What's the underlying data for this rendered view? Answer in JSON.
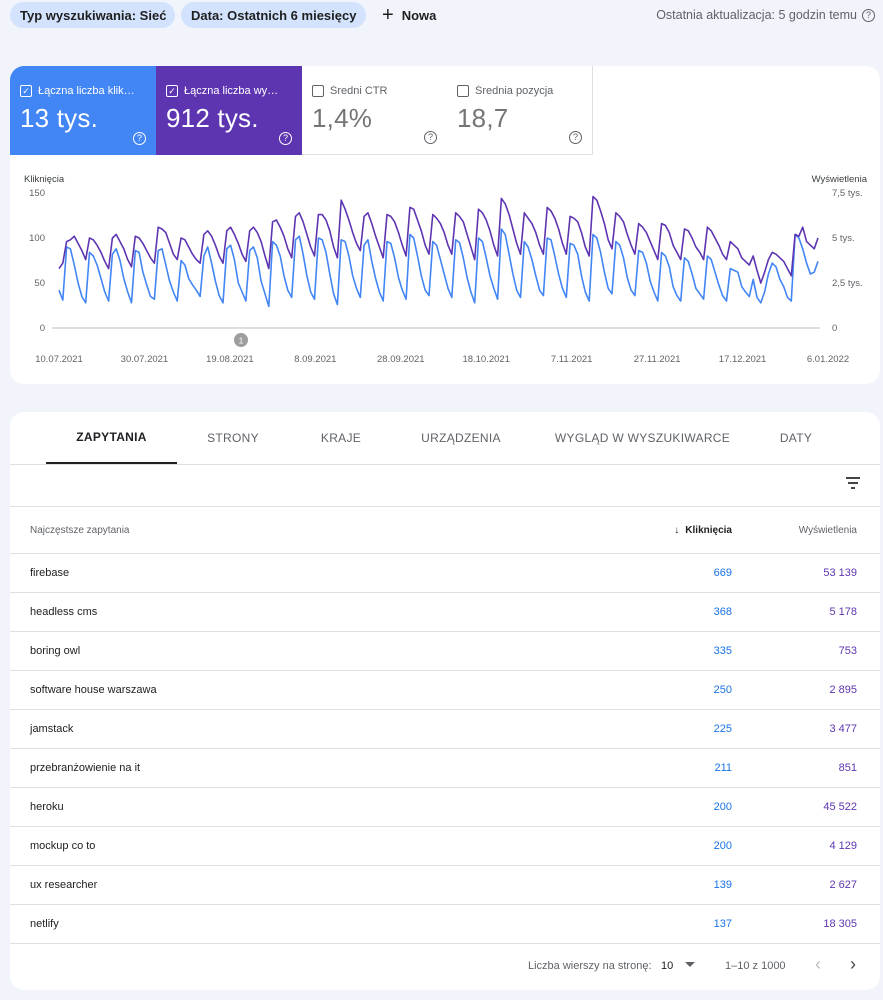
{
  "filters": {
    "search_type": "Typ wyszukiwania: Sieć",
    "date_range": "Data: Ostatnich 6 miesięcy",
    "new_label": "Nowa",
    "last_update": "Ostatnia aktualizacja: 5 godzin temu"
  },
  "metrics": [
    {
      "label": "Łączna liczba klik…",
      "value": "13 tys.",
      "checked": true
    },
    {
      "label": "Łączna liczba wy…",
      "value": "912 tys.",
      "checked": true
    },
    {
      "label": "Średni CTR",
      "value": "1,4%",
      "checked": false
    },
    {
      "label": "Średnia pozycja",
      "value": "18,7",
      "checked": false
    }
  ],
  "colors": {
    "clicks": "#4285f4",
    "impressions": "#5e35b1",
    "accent": "#1a73e8"
  },
  "chart_data": {
    "type": "line",
    "xlabel": "",
    "left_axis_label": "Kliknięcia",
    "right_axis_label": "Wyświetlenia",
    "left_ticks": [
      "150",
      "100",
      "50",
      "0"
    ],
    "right_ticks": [
      "7,5 tys.",
      "5 tys.",
      "2,5 tys.",
      "0"
    ],
    "ylim_left": [
      0,
      150
    ],
    "ylim_right": [
      0,
      7500
    ],
    "x_ticks": [
      "10.07.2021",
      "30.07.2021",
      "19.08.2021",
      "8.09.2021",
      "28.09.2021",
      "18.10.2021",
      "7.11.2021",
      "27.11.2021",
      "17.12.2021",
      "6.01.2022"
    ],
    "annotation": "1",
    "series": [
      {
        "name": "Kliknięcia",
        "axis": "left",
        "values": [
          42,
          31,
          90,
          88,
          70,
          50,
          35,
          28,
          84,
          80,
          70,
          55,
          40,
          30,
          82,
          88,
          75,
          55,
          40,
          28,
          86,
          84,
          62,
          48,
          35,
          32,
          86,
          88,
          70,
          52,
          40,
          30,
          75,
          70,
          55,
          48,
          42,
          35,
          80,
          90,
          72,
          52,
          36,
          28,
          88,
          92,
          76,
          50,
          40,
          30,
          86,
          90,
          78,
          52,
          38,
          24,
          96,
          92,
          80,
          58,
          42,
          34,
          98,
          102,
          82,
          58,
          40,
          32,
          100,
          98,
          84,
          60,
          38,
          26,
          98,
          96,
          80,
          58,
          44,
          34,
          92,
          98,
          74,
          55,
          40,
          30,
          96,
          94,
          78,
          56,
          42,
          32,
          104,
          100,
          80,
          58,
          42,
          36,
          96,
          92,
          76,
          60,
          44,
          34,
          98,
          95,
          78,
          56,
          40,
          28,
          100,
          96,
          78,
          58,
          44,
          32,
          110,
          104,
          82,
          60,
          42,
          34,
          96,
          90,
          76,
          58,
          42,
          36,
          100,
          98,
          80,
          60,
          44,
          34,
          94,
          92,
          82,
          58,
          40,
          30,
          104,
          100,
          84,
          62,
          44,
          38,
          96,
          92,
          78,
          56,
          42,
          36,
          86,
          84,
          72,
          52,
          40,
          30,
          84,
          80,
          68,
          46,
          36,
          30,
          78,
          74,
          60,
          44,
          38,
          32,
          80,
          76,
          62,
          48,
          36,
          30,
          66,
          64,
          62,
          46,
          40,
          35,
          54,
          34,
          28,
          40,
          60,
          72,
          68,
          54,
          46,
          34,
          30,
          104,
          100,
          88,
          72,
          60,
          62,
          74
        ]
      },
      {
        "name": "Wyświetlenia",
        "axis": "right",
        "values": [
          3300,
          3600,
          4800,
          4900,
          5100,
          4700,
          4300,
          3800,
          5000,
          4900,
          4600,
          4200,
          3700,
          3300,
          5000,
          5200,
          4800,
          4400,
          3800,
          3400,
          5100,
          5000,
          4700,
          4300,
          3900,
          3600,
          5600,
          5500,
          5300,
          4700,
          4100,
          3800,
          5000,
          4900,
          4500,
          4100,
          3800,
          3600,
          5200,
          5400,
          5100,
          4600,
          4000,
          3600,
          5400,
          5600,
          5200,
          4700,
          4100,
          3700,
          5400,
          5600,
          5300,
          4800,
          4000,
          3300,
          5900,
          6000,
          5600,
          5100,
          4400,
          3900,
          6200,
          6400,
          5900,
          5200,
          4500,
          4000,
          6300,
          6300,
          6000,
          5400,
          4500,
          3900,
          7100,
          6600,
          6000,
          5300,
          4700,
          4300,
          6200,
          6400,
          5800,
          5100,
          4500,
          3900,
          6300,
          6200,
          5900,
          5300,
          4600,
          4000,
          6700,
          6600,
          6000,
          5400,
          4600,
          4100,
          6300,
          6100,
          5800,
          5300,
          4600,
          4100,
          6400,
          6200,
          5900,
          5200,
          4500,
          3800,
          6600,
          6400,
          6000,
          5400,
          4600,
          4000,
          7200,
          6900,
          6300,
          5500,
          4700,
          4100,
          6400,
          6100,
          5800,
          5300,
          4600,
          4100,
          6700,
          6500,
          6100,
          5500,
          4700,
          4100,
          6200,
          6100,
          5900,
          5300,
          4500,
          4000,
          7300,
          7100,
          6500,
          5800,
          4900,
          4400,
          6400,
          6200,
          5900,
          5200,
          4600,
          4100,
          5800,
          5600,
          5300,
          4800,
          4300,
          3800,
          5800,
          5700,
          5300,
          4600,
          4200,
          3800,
          5500,
          5400,
          5000,
          4500,
          4200,
          3800,
          5600,
          5400,
          5000,
          4600,
          4100,
          3800,
          4800,
          4600,
          4400,
          3900,
          3700,
          3500,
          4000,
          3200,
          2500,
          3100,
          3800,
          4200,
          4100,
          3900,
          3700,
          3300,
          2900,
          5200,
          5100,
          5600,
          4800,
          4600,
          4400,
          5000
        ]
      }
    ]
  },
  "tabs": [
    "ZAPYTANIA",
    "STRONY",
    "KRAJE",
    "URZĄDZENIA",
    "WYGLĄD W WYSZUKIWARCE",
    "DATY"
  ],
  "table": {
    "headers": {
      "query": "Najczęstsze zapytania",
      "clicks": "Kliknięcia",
      "impressions": "Wyświetlenia"
    },
    "rows": [
      {
        "query": "firebase",
        "clicks": "669",
        "impressions": "53 139"
      },
      {
        "query": "headless cms",
        "clicks": "368",
        "impressions": "5 178"
      },
      {
        "query": "boring owl",
        "clicks": "335",
        "impressions": "753"
      },
      {
        "query": "software house warszawa",
        "clicks": "250",
        "impressions": "2 895"
      },
      {
        "query": "jamstack",
        "clicks": "225",
        "impressions": "3 477"
      },
      {
        "query": "przebranżowienie na it",
        "clicks": "211",
        "impressions": "851"
      },
      {
        "query": "heroku",
        "clicks": "200",
        "impressions": "45 522"
      },
      {
        "query": "mockup co to",
        "clicks": "200",
        "impressions": "4 129"
      },
      {
        "query": "ux researcher",
        "clicks": "139",
        "impressions": "2 627"
      },
      {
        "query": "netlify",
        "clicks": "137",
        "impressions": "18 305"
      }
    ]
  },
  "pagination": {
    "rows_per_page_label": "Liczba wierszy na stronę:",
    "rows_per_page": "10",
    "range": "1–10 z 1000"
  }
}
